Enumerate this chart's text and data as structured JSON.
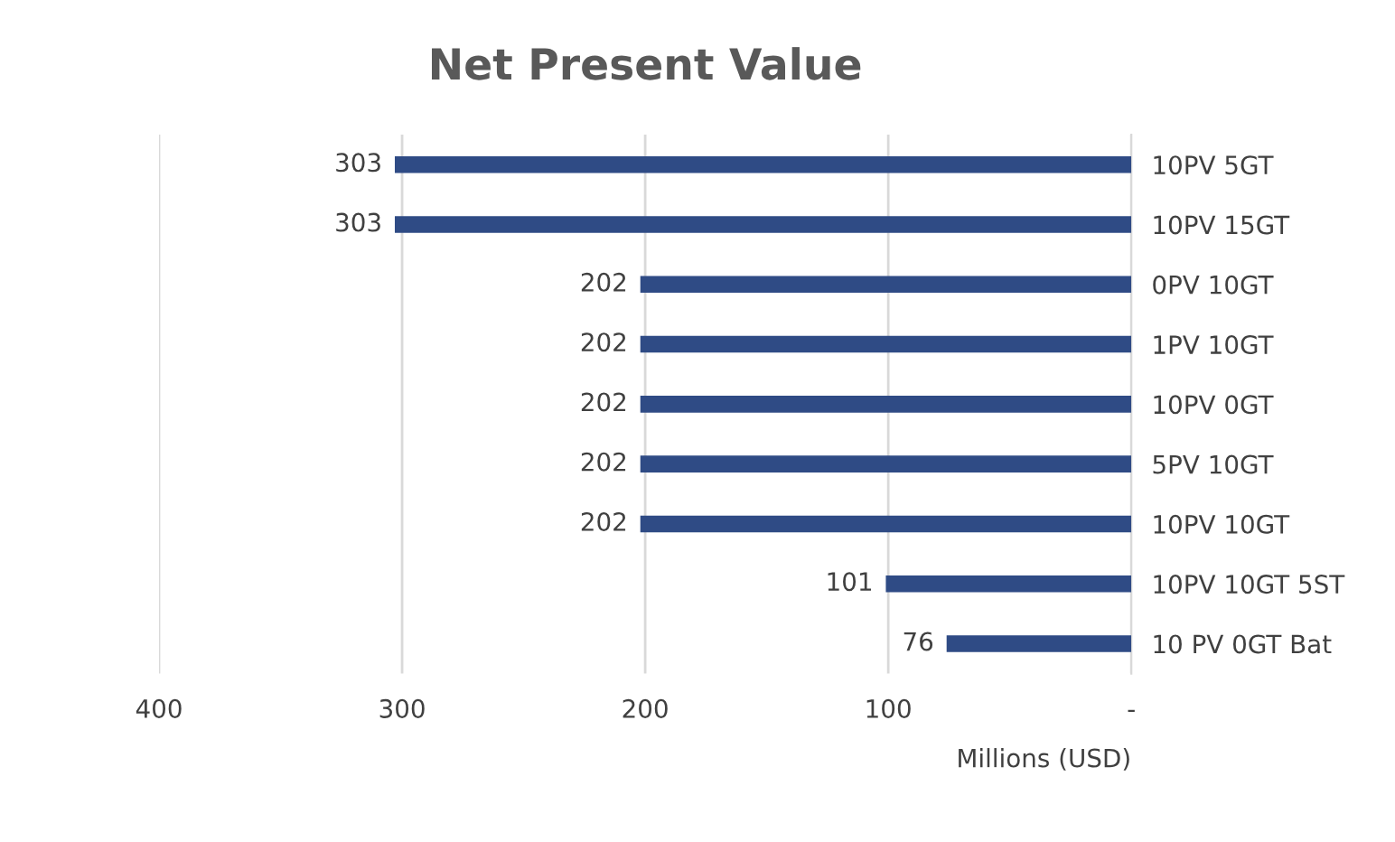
{
  "chart_data": {
    "type": "bar",
    "orientation": "horizontal",
    "title": "Net Present Value",
    "xlabel": "Millions (USD)",
    "categories": [
      "10PV 5GT",
      "10PV 15GT",
      "0PV 10GT",
      "1PV 10GT",
      "10PV 0GT",
      "5PV 10GT",
      "10PV 10GT",
      "10PV 10GT 5ST",
      "10 PV 0GT Bat"
    ],
    "values": [
      303,
      303,
      202,
      202,
      202,
      202,
      202,
      101,
      76
    ],
    "color": "#2f4b85",
    "xlim": [
      400,
      0
    ],
    "xticks": [
      400,
      300,
      200,
      100,
      {
        "value": 0,
        "label": "-"
      }
    ],
    "grid": "x",
    "data_labels": true,
    "legend": false
  }
}
